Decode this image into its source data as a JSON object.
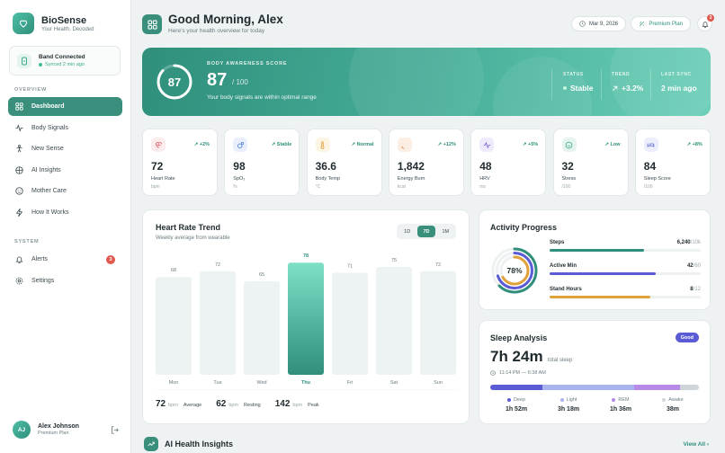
{
  "brand": {
    "name": "BioSense",
    "tagline": "Your Health, Decoded"
  },
  "band": {
    "title": "Band Connected",
    "status": "Synced 2 min ago"
  },
  "sidebar": {
    "overview_label": "OVERVIEW",
    "overview_items": [
      {
        "label": "Dashboard",
        "icon": "grid-icon",
        "active": true
      },
      {
        "label": "Body Signals",
        "icon": "pulse-icon"
      },
      {
        "label": "New Sense",
        "icon": "person-icon"
      },
      {
        "label": "AI Insights",
        "icon": "brain-icon"
      },
      {
        "label": "Mother Care",
        "icon": "smile-icon"
      },
      {
        "label": "How It Works",
        "icon": "bolt-icon"
      }
    ],
    "system_label": "SYSTEM",
    "system_items": [
      {
        "label": "Alerts",
        "icon": "bell-icon",
        "badge": "3"
      },
      {
        "label": "Settings",
        "icon": "gear-icon"
      }
    ]
  },
  "user": {
    "initials": "AJ",
    "name": "Alex Johnson",
    "plan": "Premium Plan"
  },
  "header": {
    "greeting": "Good Morning, Alex",
    "subtitle": "Here's your health overview for today",
    "date": "Mar 9, 2026",
    "plan": "Premium Plan",
    "notifications": "3"
  },
  "hero": {
    "ring_value": "87",
    "ring_progress": 0.87,
    "label": "BODY AWARENESS SCORE",
    "score": "87",
    "max": "/ 100",
    "description": "Your body signals are within optimal range",
    "status_label": "STATUS",
    "status_value": "Stable",
    "trend_label": "TREND",
    "trend_value": "+3.2%",
    "sync_label": "LAST SYNC",
    "sync_value": "2 min ago"
  },
  "metrics": [
    {
      "icon": "heart-icon",
      "trend": "+2%",
      "value": "72",
      "label": "Heart Rate",
      "unit": "bpm",
      "color": "#e05a6a",
      "bg": "#fdecee"
    },
    {
      "icon": "oxygen-icon",
      "trend": "Stable",
      "value": "98",
      "label": "SpO₂",
      "unit": "%",
      "color": "#4a78d6",
      "bg": "#e9effc"
    },
    {
      "icon": "thermometer-icon",
      "trend": "Normal",
      "value": "36.6",
      "label": "Body Temp",
      "unit": "°C",
      "color": "#d99a2b",
      "bg": "#fdf4e3"
    },
    {
      "icon": "flame-icon",
      "trend": "+12%",
      "value": "1,842",
      "label": "Energy Burn",
      "unit": "kcal",
      "color": "#e0743a",
      "bg": "#fdeee4"
    },
    {
      "icon": "wave-icon",
      "trend": "+5%",
      "value": "48",
      "label": "HRV",
      "unit": "ms",
      "color": "#7a5bd6",
      "bg": "#efeafc"
    },
    {
      "icon": "stress-icon",
      "trend": "Low",
      "value": "32",
      "label": "Stress",
      "unit": "/100",
      "color": "#3aa88a",
      "bg": "#e6f4f0"
    },
    {
      "icon": "bed-icon",
      "trend": "+8%",
      "value": "84",
      "label": "Sleep Score",
      "unit": "/100",
      "color": "#5b6ad6",
      "bg": "#eceefc"
    }
  ],
  "heart_trend": {
    "title": "Heart Rate Trend",
    "subtitle": "Weekly average from wearable",
    "ranges": [
      "1D",
      "7D",
      "1M"
    ],
    "active_range": "7D",
    "summary": [
      {
        "value": "72",
        "unit": "bpm",
        "label": "Average"
      },
      {
        "value": "62",
        "unit": "bpm",
        "label": "Resting"
      },
      {
        "value": "142",
        "unit": "bpm",
        "label": "Peak"
      }
    ]
  },
  "chart_data": {
    "type": "bar",
    "categories": [
      "Mon",
      "Tue",
      "Wed",
      "Thu",
      "Fri",
      "Sat",
      "Sun"
    ],
    "values": [
      68,
      72,
      65,
      78,
      71,
      75,
      72
    ],
    "highlight": "Thu",
    "title": "Heart Rate Trend"
  },
  "activity": {
    "title": "Activity Progress",
    "percent_label": "78%",
    "rows": [
      {
        "label": "Steps",
        "value": "6,240",
        "max": "10k",
        "fraction": 0.624,
        "color": "#2f8f7b"
      },
      {
        "label": "Active Min",
        "value": "42",
        "max": "60",
        "fraction": 0.7,
        "color": "#5b5bd6"
      },
      {
        "label": "Stand Hours",
        "value": "8",
        "max": "12",
        "fraction": 0.667,
        "color": "#e0a03a"
      }
    ]
  },
  "sleep": {
    "title": "Sleep Analysis",
    "badge": "Good",
    "duration": "7h 24m",
    "total_label": "total sleep",
    "range": "11:14 PM — 6:38 AM",
    "stages": [
      {
        "label": "Deep",
        "value": "1h 52m",
        "fraction": 0.25,
        "color": "#5b5bd6"
      },
      {
        "label": "Light",
        "value": "3h 18m",
        "fraction": 0.44,
        "color": "#a9b4ee"
      },
      {
        "label": "REM",
        "value": "1h 36m",
        "fraction": 0.22,
        "color": "#b68ae6"
      },
      {
        "label": "Awake",
        "value": "38m",
        "fraction": 0.09,
        "color": "#cfd6d9"
      }
    ]
  },
  "insights": {
    "title": "AI Health Insights",
    "link": "View All"
  }
}
